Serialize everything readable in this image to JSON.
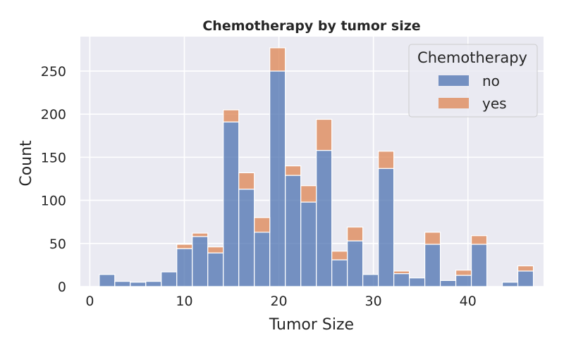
{
  "chart_data": {
    "type": "bar",
    "stacked": true,
    "title": "Chemotherapy by tumor size",
    "xlabel": "Tumor Size",
    "ylabel": "Count",
    "xlim": [
      -1,
      48
    ],
    "ylim": [
      0,
      290
    ],
    "xticks": [
      0,
      10,
      20,
      30,
      40
    ],
    "yticks": [
      0,
      50,
      100,
      150,
      200,
      250
    ],
    "bin_width": 1.64,
    "bin_starts": [
      1.0,
      2.64,
      4.28,
      5.92,
      7.56,
      9.2,
      10.84,
      12.48,
      14.12,
      15.76,
      17.4,
      19.04,
      20.68,
      22.32,
      23.96,
      25.6,
      27.24,
      28.88,
      30.52,
      32.16,
      33.8,
      35.44,
      37.08,
      38.72,
      40.36,
      42.0,
      43.64,
      45.28
    ],
    "grid": true,
    "legend": {
      "title": "Chemotherapy",
      "position": "top-right"
    },
    "series": [
      {
        "name": "no",
        "color": "#4c72b0",
        "values": [
          14,
          6,
          5,
          6,
          17,
          44,
          58,
          39,
          191,
          113,
          63,
          250,
          129,
          98,
          158,
          31,
          53,
          14,
          137,
          15,
          10,
          49,
          7,
          13,
          49,
          0,
          5,
          18
        ]
      },
      {
        "name": "yes",
        "color": "#dd8452",
        "values": [
          0,
          0,
          0,
          0,
          0,
          5,
          4,
          7,
          14,
          19,
          17,
          27,
          11,
          19,
          36,
          10,
          16,
          0,
          20,
          3,
          0,
          14,
          0,
          6,
          10,
          0,
          0,
          6
        ]
      }
    ]
  }
}
